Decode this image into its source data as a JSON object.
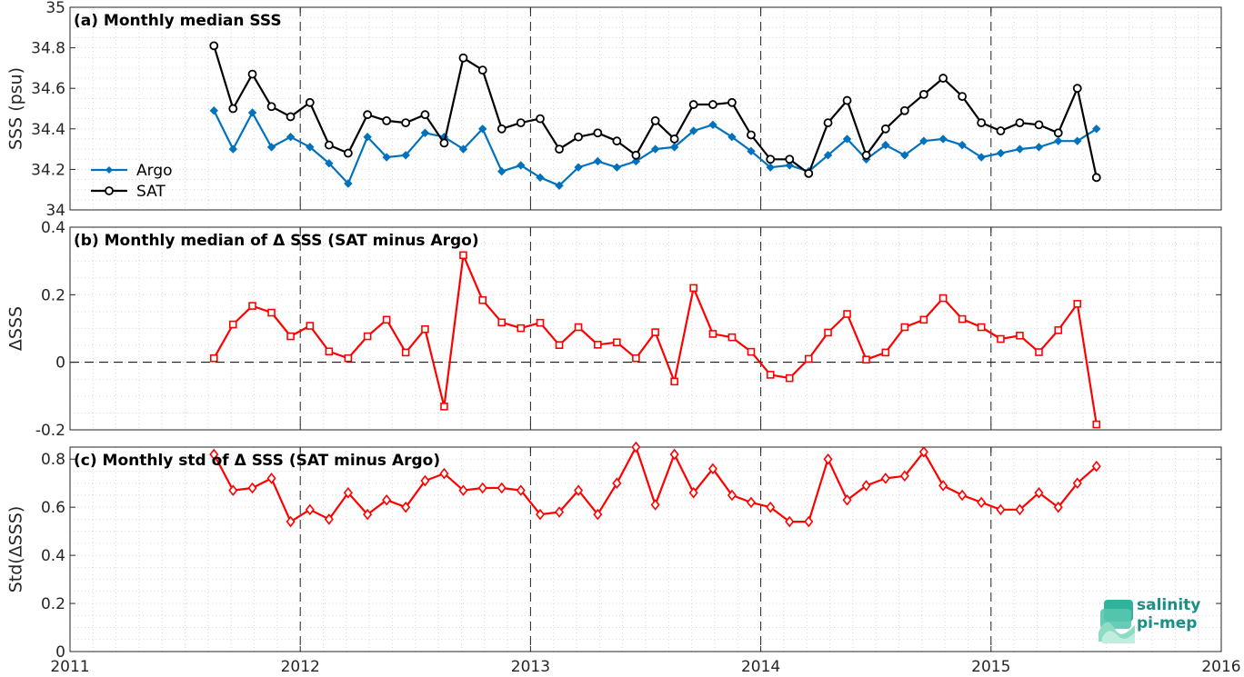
{
  "chart_data": [
    {
      "type": "line",
      "panel": "a",
      "title": "(a) Monthly median SSS",
      "xlabel": "",
      "ylabel": "SSS (psu)",
      "xlim": [
        2011,
        2016
      ],
      "ylim": [
        34,
        35
      ],
      "yticks": [
        "34",
        "34.2",
        "34.4",
        "34.6",
        "34.8",
        "35"
      ],
      "grid": true,
      "legend_position": "left",
      "x": [
        2011.625,
        2011.708,
        2011.792,
        2011.875,
        2011.958,
        2012.042,
        2012.125,
        2012.208,
        2012.292,
        2012.375,
        2012.458,
        2012.542,
        2012.625,
        2012.708,
        2012.792,
        2012.875,
        2012.958,
        2013.042,
        2013.125,
        2013.208,
        2013.292,
        2013.375,
        2013.458,
        2013.542,
        2013.625,
        2013.708,
        2013.792,
        2013.875,
        2013.958,
        2014.042,
        2014.125,
        2014.208,
        2014.292,
        2014.375,
        2014.458,
        2014.542,
        2014.625,
        2014.708,
        2014.792,
        2014.875,
        2014.958,
        2015.042,
        2015.125,
        2015.208,
        2015.292,
        2015.375,
        2015.458
      ],
      "series": [
        {
          "name": "Argo",
          "color": "#0072BD",
          "marker": "filled-diamond",
          "values": [
            34.49,
            34.3,
            34.48,
            34.31,
            34.36,
            34.31,
            34.23,
            34.13,
            34.36,
            34.26,
            34.27,
            34.38,
            34.36,
            34.3,
            34.4,
            34.19,
            34.22,
            34.16,
            34.12,
            34.21,
            34.24,
            34.21,
            34.24,
            34.3,
            34.31,
            34.39,
            34.42,
            34.36,
            34.29,
            34.21,
            34.22,
            34.19,
            34.27,
            34.35,
            34.25,
            34.32,
            34.27,
            34.34,
            34.35,
            34.32,
            34.26,
            34.28,
            34.3,
            34.31,
            34.34,
            34.34,
            34.4
          ]
        },
        {
          "name": "SAT",
          "color": "#000000",
          "marker": "open-circle",
          "values": [
            34.81,
            34.5,
            34.67,
            34.51,
            34.46,
            34.53,
            34.32,
            34.28,
            34.47,
            34.44,
            34.43,
            34.47,
            34.33,
            34.75,
            34.69,
            34.4,
            34.43,
            34.45,
            34.3,
            34.36,
            34.38,
            34.34,
            34.27,
            34.44,
            34.35,
            34.52,
            34.52,
            34.53,
            34.37,
            34.25,
            34.25,
            34.18,
            34.43,
            34.54,
            34.27,
            34.4,
            34.49,
            34.57,
            34.65,
            34.56,
            34.43,
            34.39,
            34.43,
            34.42,
            34.38,
            34.6,
            34.16
          ]
        }
      ]
    },
    {
      "type": "line",
      "panel": "b",
      "title": "(b) Monthly median of Δ SSS (SAT minus Argo)",
      "xlabel": "",
      "ylabel": "ΔSSS",
      "xlim": [
        2011,
        2016
      ],
      "ylim": [
        -0.2,
        0.4
      ],
      "yticks": [
        "-0.2",
        "0",
        "0.2",
        "0.4"
      ],
      "grid": true,
      "reference_line": 0,
      "x": [
        2011.625,
        2011.708,
        2011.792,
        2011.875,
        2011.958,
        2012.042,
        2012.125,
        2012.208,
        2012.292,
        2012.375,
        2012.458,
        2012.542,
        2012.625,
        2012.708,
        2012.792,
        2012.875,
        2012.958,
        2013.042,
        2013.125,
        2013.208,
        2013.292,
        2013.375,
        2013.458,
        2013.542,
        2013.625,
        2013.708,
        2013.792,
        2013.875,
        2013.958,
        2014.042,
        2014.125,
        2014.208,
        2014.292,
        2014.375,
        2014.458,
        2014.542,
        2014.625,
        2014.708,
        2014.792,
        2014.875,
        2014.958,
        2015.042,
        2015.125,
        2015.208,
        2015.292,
        2015.375,
        2015.458
      ],
      "series": [
        {
          "color": "#ff0000",
          "marker": "open-square",
          "values": [
            0.012,
            0.112,
            0.167,
            0.147,
            0.077,
            0.108,
            0.032,
            0.012,
            0.077,
            0.126,
            0.029,
            0.098,
            -0.131,
            0.317,
            0.184,
            0.118,
            0.101,
            0.117,
            0.051,
            0.104,
            0.052,
            0.059,
            0.012,
            0.089,
            -0.057,
            0.22,
            0.084,
            0.074,
            0.031,
            -0.037,
            -0.047,
            0.01,
            0.088,
            0.143,
            0.008,
            0.029,
            0.104,
            0.126,
            0.19,
            0.128,
            0.104,
            0.069,
            0.079,
            0.03,
            0.095,
            0.173,
            -0.184
          ]
        }
      ]
    },
    {
      "type": "line",
      "panel": "c",
      "title": "(c) Monthly std of Δ SSS (SAT minus Argo)",
      "xlabel": "",
      "ylabel": "Std(ΔSSS)",
      "xlim": [
        2011,
        2016
      ],
      "ylim": [
        0,
        0.85
      ],
      "yticks": [
        "0",
        "0.2",
        "0.4",
        "0.6",
        "0.8"
      ],
      "xticks": [
        "2011",
        "2012",
        "2013",
        "2014",
        "2015",
        "2016"
      ],
      "grid": true,
      "x": [
        2011.625,
        2011.708,
        2011.792,
        2011.875,
        2011.958,
        2012.042,
        2012.125,
        2012.208,
        2012.292,
        2012.375,
        2012.458,
        2012.542,
        2012.625,
        2012.708,
        2012.792,
        2012.875,
        2012.958,
        2013.042,
        2013.125,
        2013.208,
        2013.292,
        2013.375,
        2013.458,
        2013.542,
        2013.625,
        2013.708,
        2013.792,
        2013.875,
        2013.958,
        2014.042,
        2014.125,
        2014.208,
        2014.292,
        2014.375,
        2014.458,
        2014.542,
        2014.625,
        2014.708,
        2014.792,
        2014.875,
        2014.958,
        2015.042,
        2015.125,
        2015.208,
        2015.292,
        2015.375,
        2015.458
      ],
      "series": [
        {
          "color": "#ff0000",
          "marker": "open-diamond",
          "values": [
            0.82,
            0.67,
            0.68,
            0.72,
            0.54,
            0.59,
            0.55,
            0.66,
            0.57,
            0.63,
            0.6,
            0.71,
            0.74,
            0.67,
            0.68,
            0.68,
            0.67,
            0.57,
            0.58,
            0.67,
            0.57,
            0.7,
            0.85,
            0.61,
            0.82,
            0.66,
            0.76,
            0.65,
            0.62,
            0.6,
            0.54,
            0.54,
            0.8,
            0.63,
            0.69,
            0.72,
            0.73,
            0.83,
            0.69,
            0.65,
            0.62,
            0.59,
            0.59,
            0.66,
            0.6,
            0.7,
            0.77
          ]
        }
      ]
    }
  ],
  "logo": {
    "text_line1": "salinity",
    "text_line2": "pi-mep",
    "color": "#1a8f86"
  }
}
